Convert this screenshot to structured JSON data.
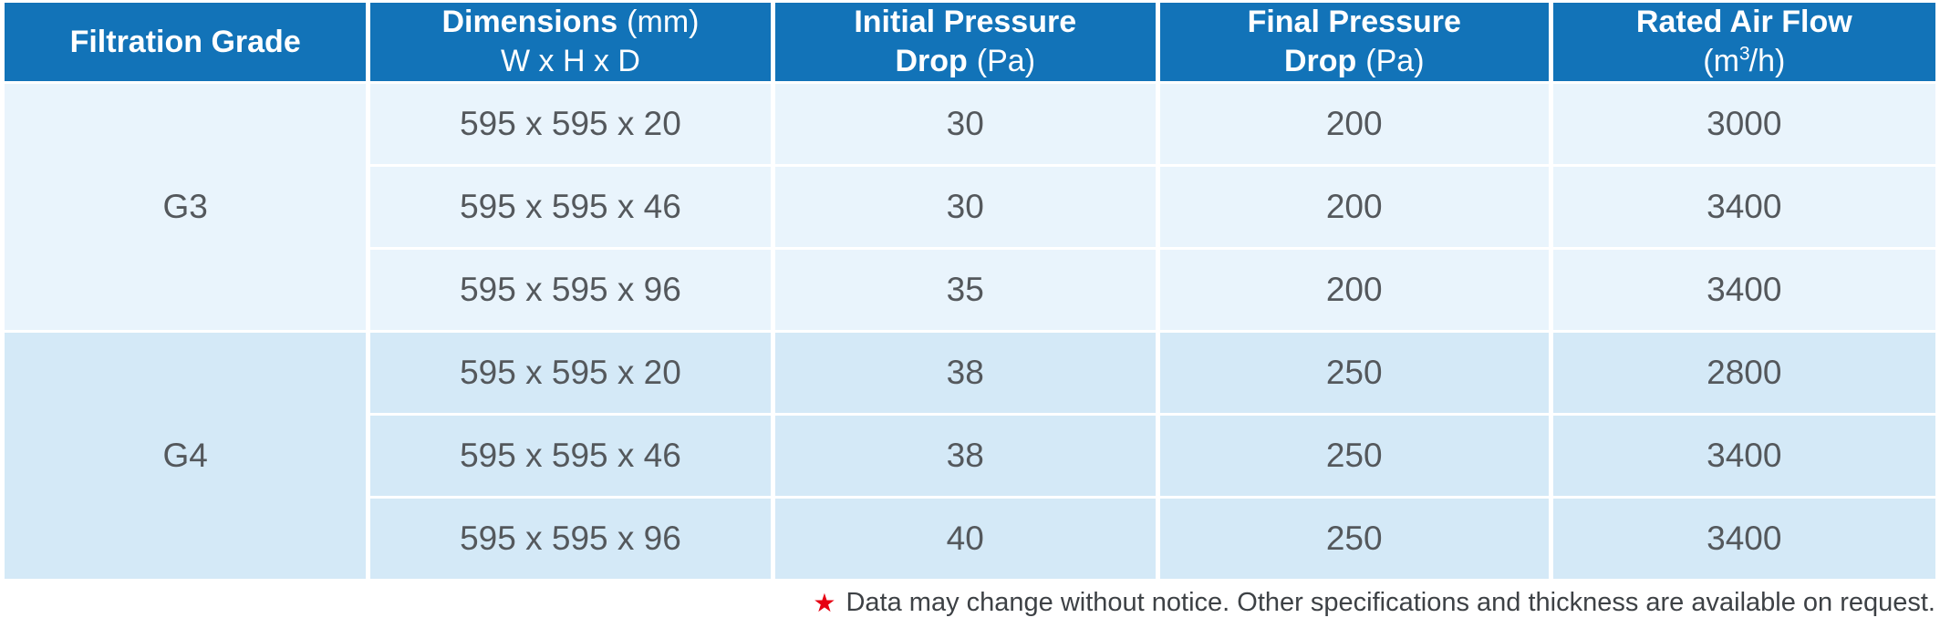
{
  "colors": {
    "header_bg": "#1273b8",
    "header_text": "#ffffff",
    "g3_row_bg": "#e9f4fc",
    "g4_row_bg": "#d4e9f7",
    "body_text": "#54585c",
    "footnote_text": "#3d4145",
    "footnote_star": "#e60012"
  },
  "table": {
    "header": {
      "grade": {
        "line1_bold": "Filtration Grade"
      },
      "dimensions": {
        "line1_bold": "Dimensions",
        "line1_normal": "(mm)",
        "line2": "W x H x D"
      },
      "initial": {
        "line1_bold": "Initial Pressure",
        "line2_bold": "Drop",
        "line2_normal": "(Pa)"
      },
      "final": {
        "line1_bold": "Final Pressure",
        "line2_bold": "Drop",
        "line2_normal": "(Pa)"
      },
      "flow": {
        "line1_bold": "Rated Air Flow",
        "line2_pre": "(m",
        "line2_sup": "3",
        "line2_post": "/h)"
      }
    },
    "g3": {
      "grade": "G3",
      "rows": [
        {
          "dims": "595 x 595 x 20",
          "initial": "30",
          "final": "200",
          "flow": "3000"
        },
        {
          "dims": "595 x 595 x 46",
          "initial": "30",
          "final": "200",
          "flow": "3400"
        },
        {
          "dims": "595 x 595 x 96",
          "initial": "35",
          "final": "200",
          "flow": "3400"
        }
      ]
    },
    "g4": {
      "grade": "G4",
      "rows": [
        {
          "dims": "595 x 595 x 20",
          "initial": "38",
          "final": "250",
          "flow": "2800"
        },
        {
          "dims": "595 x 595 x 46",
          "initial": "38",
          "final": "250",
          "flow": "3400"
        },
        {
          "dims": "595 x 595 x 96",
          "initial": "40",
          "final": "250",
          "flow": "3400"
        }
      ]
    }
  },
  "footnote": {
    "star": "★",
    "text": "Data may change without notice. Other specifications and thickness are available on request."
  }
}
